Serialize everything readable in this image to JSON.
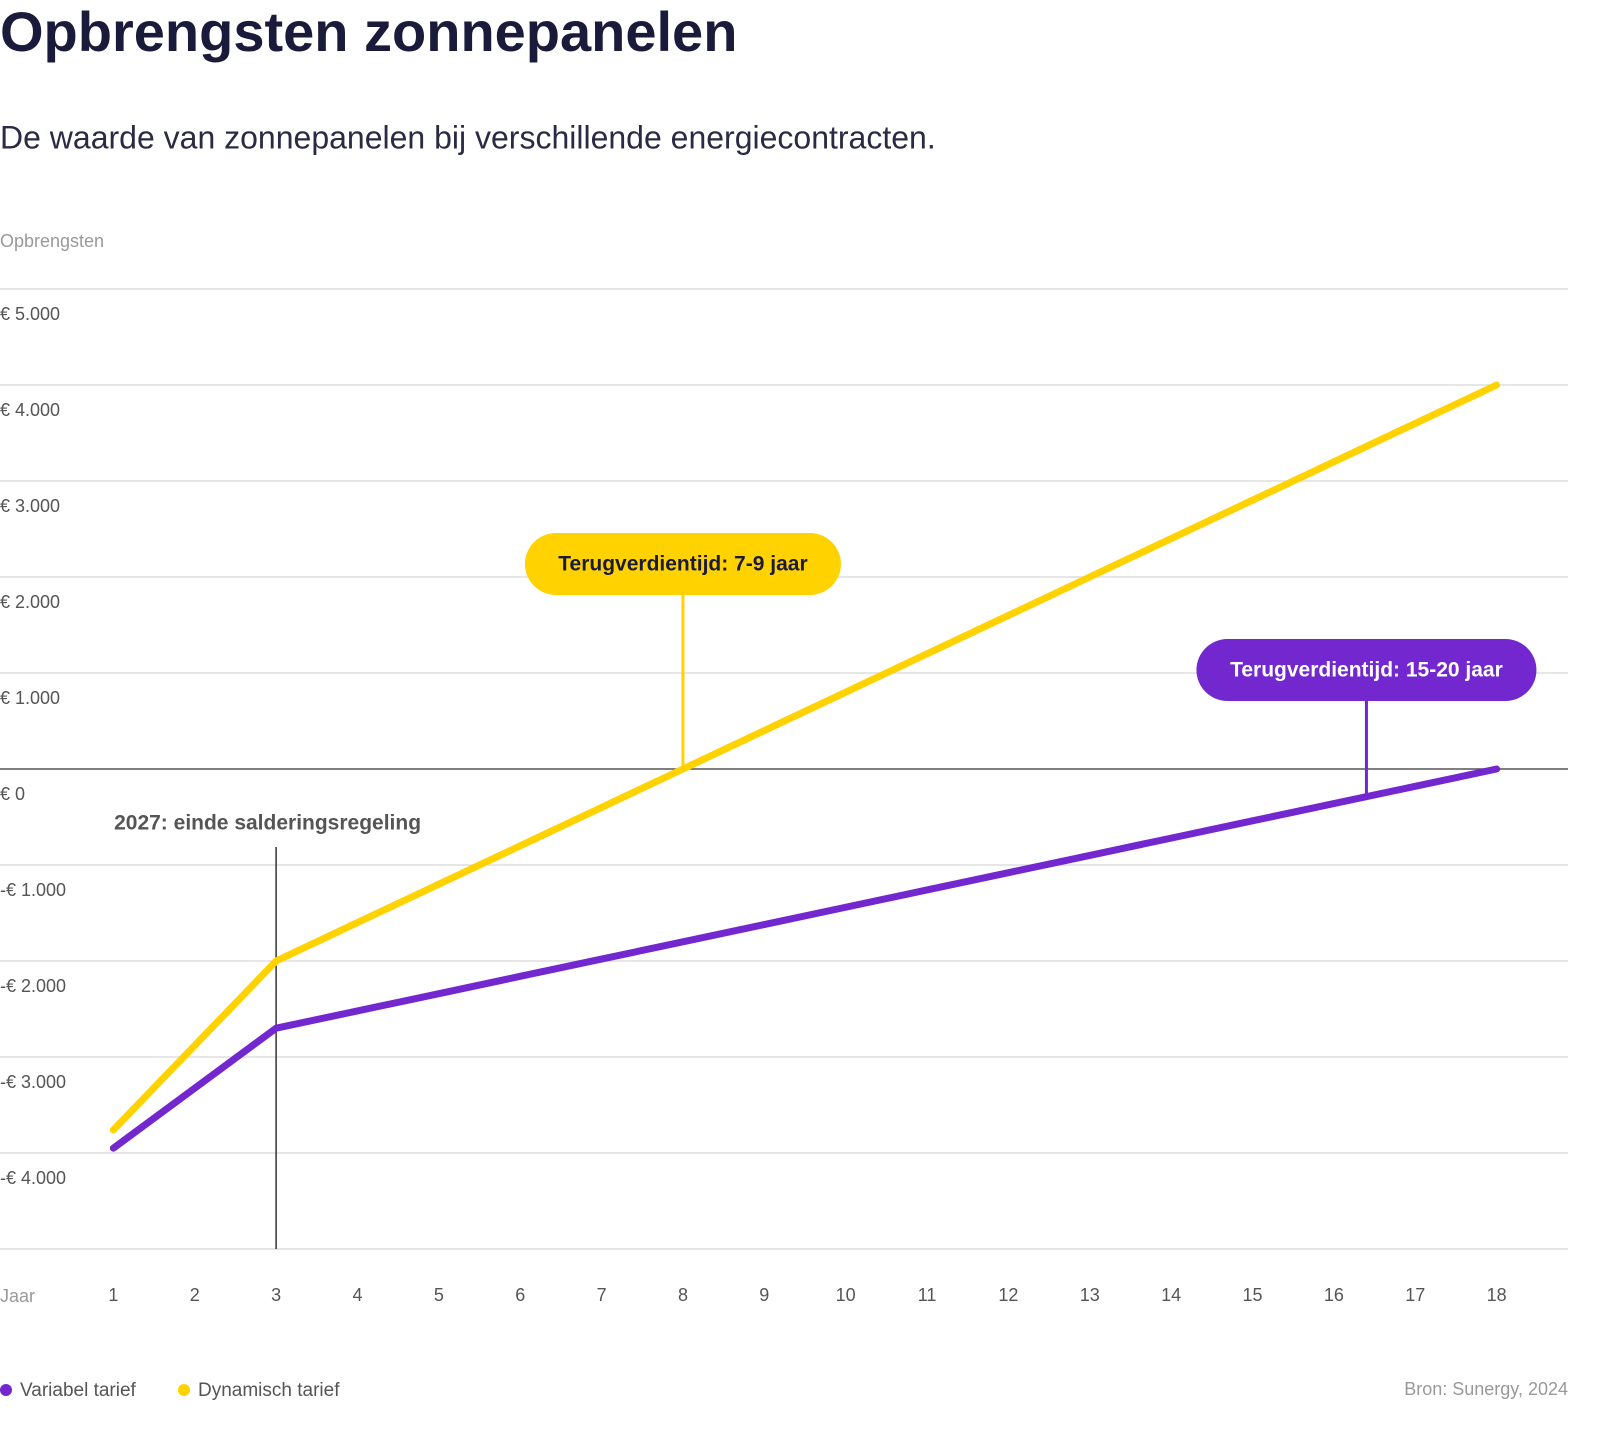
{
  "chart_data": {
    "type": "line",
    "title": "Opbrengsten zonnepanelen",
    "subtitle": "De waarde van zonnepanelen bij verschillende energiecontracten.",
    "y_label": "Opbrengsten",
    "x_label": "Jaar",
    "x": [
      1,
      2,
      3,
      4,
      5,
      6,
      7,
      8,
      9,
      10,
      11,
      12,
      13,
      14,
      15,
      16,
      17,
      18
    ],
    "xlim": [
      0,
      19
    ],
    "xticks": [
      1,
      2,
      3,
      4,
      5,
      6,
      7,
      8,
      9,
      10,
      11,
      12,
      13,
      14,
      15,
      16,
      17,
      18
    ],
    "ylim": [
      -5000,
      5000
    ],
    "yticks": [
      {
        "value": 5000,
        "label": "€ 5.000"
      },
      {
        "value": 4000,
        "label": "€ 4.000"
      },
      {
        "value": 3000,
        "label": "€ 3.000"
      },
      {
        "value": 2000,
        "label": "€ 2.000"
      },
      {
        "value": 1000,
        "label": "€ 1.000"
      },
      {
        "value": 0,
        "label": "€ 0"
      },
      {
        "value": -1000,
        "label": "-€ 1.000"
      },
      {
        "value": -2000,
        "label": "-€ 2.000"
      },
      {
        "value": -3000,
        "label": "-€ 3.000"
      },
      {
        "value": -4000,
        "label": "-€ 4.000"
      }
    ],
    "grid": true,
    "series": [
      {
        "name": "Variabel tarief",
        "color": "#7327cf",
        "values": [
          -3950,
          -3325,
          -2700,
          -2520,
          -2340,
          -2160,
          -1980,
          -1800,
          -1620,
          -1440,
          -1260,
          -1080,
          -900,
          -720,
          -540,
          -360,
          -180,
          0
        ]
      },
      {
        "name": "Dynamisch tarief",
        "color": "#ffd200",
        "values": [
          -3760,
          -2880,
          -2000,
          -1600,
          -1200,
          -800,
          -400,
          0,
          400,
          800,
          1200,
          1600,
          2000,
          2400,
          2800,
          3200,
          3600,
          4000
        ]
      }
    ],
    "annotations": [
      {
        "text": "2027: einde salderingsregeling",
        "x": 3
      },
      {
        "text": "Terugverdientijd: 7-9 jaar",
        "x": 8,
        "y": 0,
        "color": "#ffd200",
        "text_color": "#1a1a3a"
      },
      {
        "text": "Terugverdientijd: 15-20 jaar",
        "x": 16.4,
        "y": -280,
        "color": "#7327cf",
        "text_color": "#ffffff"
      }
    ],
    "legend": "bottom-left",
    "source": "Bron: Sunergy, 2024"
  }
}
